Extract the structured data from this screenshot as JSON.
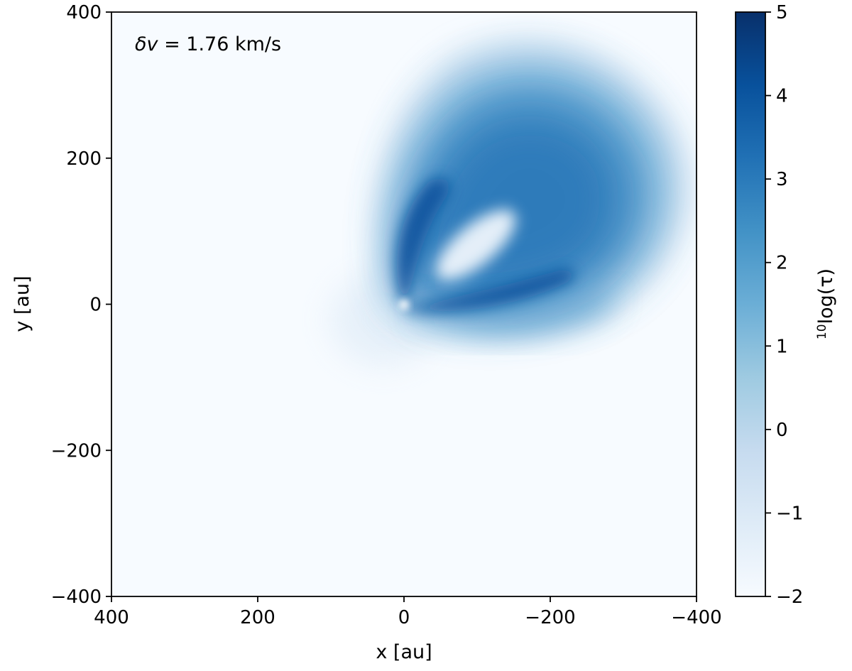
{
  "chart_data": {
    "type": "heatmap",
    "annotation": "δv = 1.76 km/s",
    "annotation_parts": {
      "symbol": "δv",
      "value": " = 1.76 km/s"
    },
    "xlabel": "x [au]",
    "ylabel": "y [au]",
    "xlim": [
      400,
      -400
    ],
    "ylim": [
      -400,
      400
    ],
    "x_ticks": [
      400,
      200,
      0,
      -200,
      -400
    ],
    "y_ticks": [
      400,
      200,
      0,
      -200,
      -400
    ],
    "x_tick_labels": [
      "400",
      "200",
      "0",
      "−200",
      "−400"
    ],
    "y_tick_labels": [
      "400",
      "200",
      "0",
      "−200",
      "−400"
    ],
    "colorbar": {
      "label_prefix": "10",
      "label_rest": "log(τ)",
      "range": [
        -2,
        5
      ],
      "ticks": [
        5,
        4,
        3,
        2,
        1,
        0,
        -1,
        -2
      ],
      "tick_labels": [
        "5",
        "4",
        "3",
        "2",
        "1",
        "0",
        "−1",
        "−2"
      ],
      "colormap": "Blues",
      "color_min": "#f7fbff",
      "color_max": "#08306b"
    },
    "features": {
      "star_position": [
        0,
        0
      ],
      "emission_region": "crescent-shaped optically thick region in upper-right quadrant (x from about 0 to -390 au, y from about -40 to 380 au), peak log τ ≈ 4.5 along a ridge near the star",
      "background_log_tau": -2
    }
  }
}
